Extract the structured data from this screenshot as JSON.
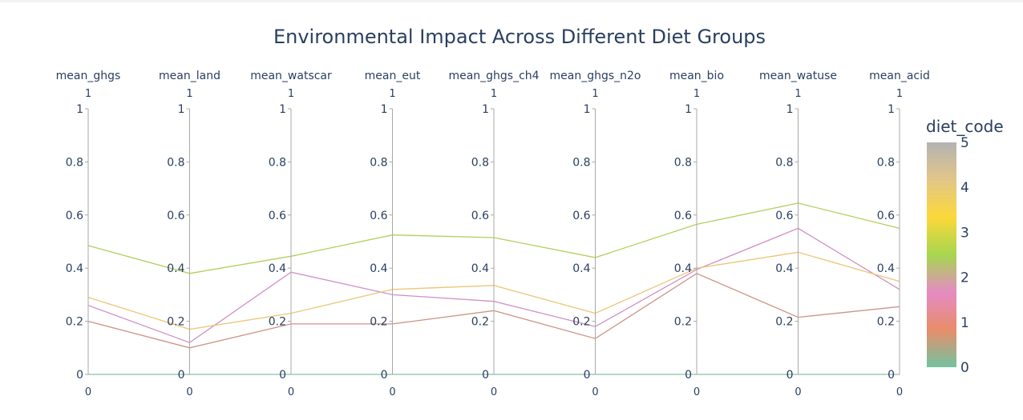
{
  "chart_data": {
    "type": "parallel_coordinates",
    "title": "Environmental Impact Across Different Diet Groups",
    "dimensions": [
      "mean_ghgs",
      "mean_land",
      "mean_watscar",
      "mean_eut",
      "mean_ghgs_ch4",
      "mean_ghgs_n2o",
      "mean_bio",
      "mean_watuse",
      "mean_acid"
    ],
    "axis_range": [
      0,
      1
    ],
    "axis_ticks": [
      "0",
      "0.2",
      "0.4",
      "0.6",
      "0.8",
      "1"
    ],
    "axis_top_label": "1",
    "axis_bottom_label": "0",
    "series": [
      {
        "diet_code": 0,
        "color": "#7dbf9f",
        "values": [
          0.0,
          0.0,
          0.0,
          0.0,
          0.0,
          0.0,
          0.0,
          0.0,
          0.0
        ]
      },
      {
        "diet_code": 1,
        "color": "#c98d7f",
        "values": [
          0.2,
          0.1,
          0.19,
          0.19,
          0.24,
          0.135,
          0.38,
          0.215,
          0.255
        ]
      },
      {
        "diet_code": 2,
        "color": "#cc8bc4",
        "values": [
          0.26,
          0.12,
          0.385,
          0.3,
          0.275,
          0.18,
          0.395,
          0.55,
          0.32
        ]
      },
      {
        "diet_code": 4,
        "color": "#e9c36f",
        "values": [
          0.29,
          0.17,
          0.23,
          0.32,
          0.335,
          0.23,
          0.4,
          0.46,
          0.35
        ]
      },
      {
        "diet_code": 3,
        "color": "#adcc55",
        "values": [
          0.485,
          0.38,
          0.445,
          0.525,
          0.515,
          0.44,
          0.565,
          0.645,
          0.55
        ]
      }
    ],
    "colorbar": {
      "title": "diet_code",
      "ticks": [
        "0",
        "1",
        "2",
        "3",
        "4",
        "5"
      ],
      "range": [
        0,
        5
      ],
      "colors": [
        "#73c3a0",
        "#e88d6a",
        "#e58bc3",
        "#a6d64f",
        "#fcd83a",
        "#e2c688",
        "#b3b3b3"
      ]
    }
  }
}
